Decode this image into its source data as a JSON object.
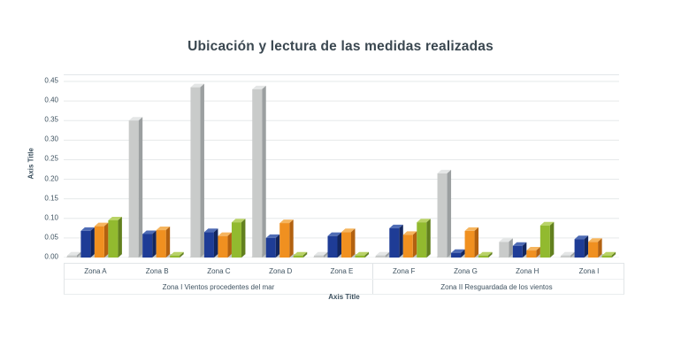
{
  "title": "Ubicación y lectura de las medidas realizadas",
  "colors": {
    "background": "#ffffff",
    "title_text": "#3a4750",
    "axis_text": "#3e5260",
    "grid": "#e6e9ea",
    "table_border": "#dfe3e5",
    "floor": "#c3c7c7"
  },
  "chart_data": {
    "type": "bar",
    "style": "3d-clustered-column",
    "title": "Ubicación y lectura de las medidas realizadas",
    "xlabel": "Axis Title",
    "ylabel": "Axis Title",
    "ylim": [
      0,
      0.45
    ],
    "ytick_step": 0.05,
    "ytick_labels": [
      "0.00",
      "0.05",
      "0.10",
      "0.15",
      "0.20",
      "0.25",
      "0.30",
      "0.35",
      "0.40",
      "0.45"
    ],
    "grid": true,
    "legend": "none",
    "categories": [
      "Zona A",
      "Zona B",
      "Zona C",
      "Zona D",
      "Zona E",
      "Zona F",
      "Zona G",
      "Zona H",
      "Zona I"
    ],
    "category_groups": [
      {
        "label": "Zona I Vientos procedentes del mar",
        "span": 5
      },
      {
        "label": "Zona II Resguardada de los vientos",
        "span": 4
      }
    ],
    "series": [
      {
        "name": "gray",
        "color": "#c9cbca",
        "color_dark": "#9b9fa0",
        "color_light": "#e4e6e6",
        "values": [
          0.005,
          0.35,
          0.435,
          0.43,
          0.005,
          0.005,
          0.215,
          0.04,
          0.005
        ]
      },
      {
        "name": "blue",
        "color": "#1e3c96",
        "color_dark": "#13265e",
        "color_light": "#4f6cb5",
        "values": [
          0.068,
          0.06,
          0.065,
          0.05,
          0.055,
          0.075,
          0.012,
          0.03,
          0.047
        ]
      },
      {
        "name": "orange",
        "color": "#f09020",
        "color_dark": "#b26110",
        "color_light": "#f6b55e",
        "values": [
          0.08,
          0.07,
          0.055,
          0.088,
          0.065,
          0.058,
          0.068,
          0.018,
          0.04
        ]
      },
      {
        "name": "green",
        "color": "#92ba2f",
        "color_dark": "#62801e",
        "color_light": "#b9d366",
        "values": [
          0.095,
          0.005,
          0.09,
          0.005,
          0.005,
          0.09,
          0.005,
          0.082,
          0.005
        ]
      }
    ]
  }
}
